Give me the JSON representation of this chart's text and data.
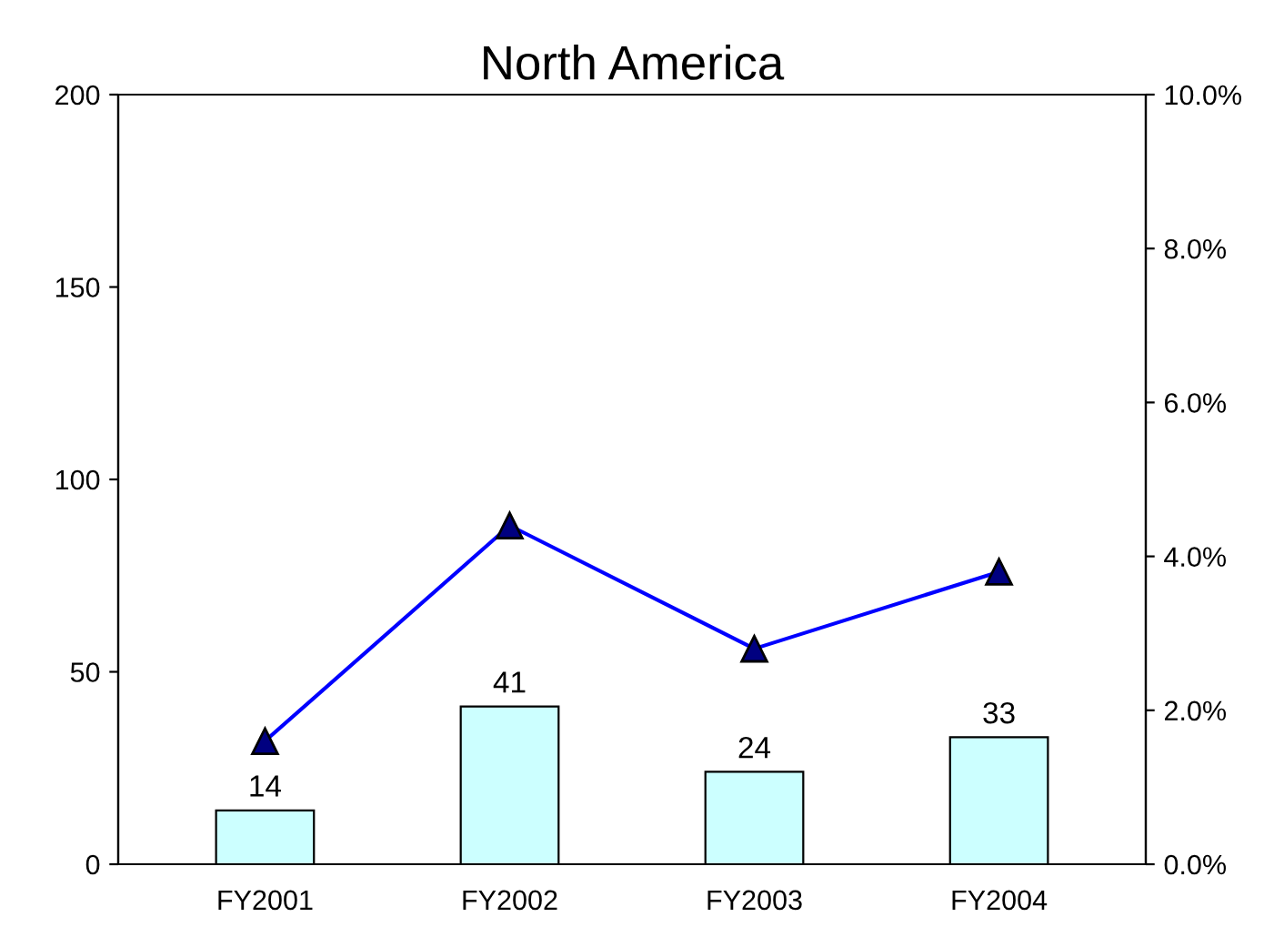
{
  "chart_data": {
    "type": "bar",
    "title": "North America",
    "categories": [
      "FY2001",
      "FY2002",
      "FY2003",
      "FY2004"
    ],
    "series": [
      {
        "color": "#ccffff",
        "values": [
          14,
          41,
          24,
          33
        ],
        "value_labels": [
          "14",
          "41",
          "24",
          "33"
        ]
      },
      {
        "type": "line",
        "axis": "y2",
        "color": "#0000ff",
        "values": [
          1.6,
          4.4,
          2.8,
          3.8
        ],
        "marker": "triangle"
      }
    ],
    "ylim": [
      0,
      200
    ],
    "yticks": [
      0,
      50,
      100,
      150,
      200
    ],
    "y2lim": [
      0,
      10
    ],
    "y2ticks": [
      {
        "value": 0,
        "label": "0.0%"
      },
      {
        "value": 2,
        "label": "2.0%"
      },
      {
        "value": 4,
        "label": "4.0%"
      },
      {
        "value": 6,
        "label": "6.0%"
      },
      {
        "value": 8,
        "label": "8.0%"
      },
      {
        "value": 10,
        "label": "10.0%"
      }
    ],
    "grid": false,
    "legend": false
  }
}
